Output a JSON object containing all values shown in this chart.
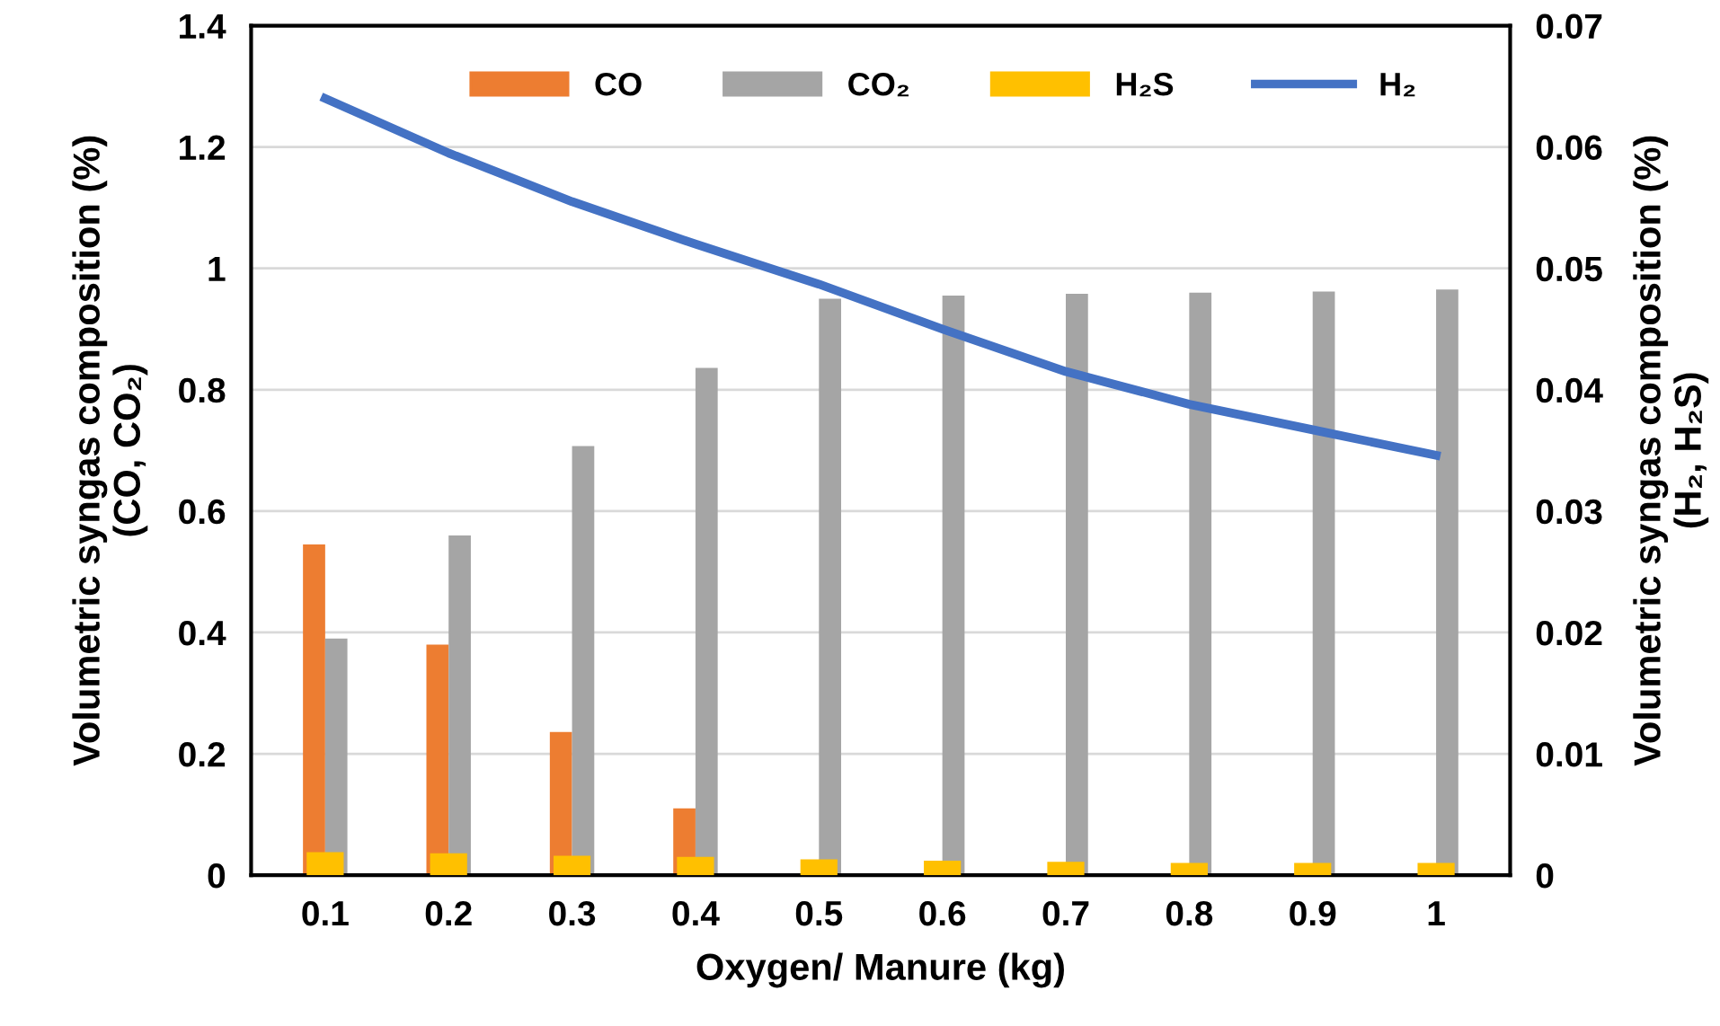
{
  "chart_data": {
    "type": "bar",
    "xlabel": "Oxygen/ Manure (kg)",
    "ylabel": "Volumetric syngas composition (%)\n(CO, CO₂)",
    "y2label": "Volumetric syngas composition (%)\n(H₂, H₂S)",
    "categories": [
      "0.1",
      "0.2",
      "0.3",
      "0.4",
      "0.5",
      "0.6",
      "0.7",
      "0.8",
      "0.9",
      "1"
    ],
    "series": [
      {
        "name": "CO",
        "color": "#ed7d31",
        "values": [
          0.545,
          0.38,
          0.236,
          0.11,
          0,
          0,
          0,
          0,
          0,
          0
        ]
      },
      {
        "name": "CO₂",
        "color": "#a5a5a5",
        "values": [
          0.39,
          0.56,
          0.707,
          0.836,
          0.95,
          0.955,
          0.958,
          0.96,
          0.962,
          0.965
        ]
      },
      {
        "name": "H₂S",
        "color": "#ffc000",
        "axis": "y2",
        "values": [
          0.0019,
          0.0018,
          0.0016,
          0.0015,
          0.0013,
          0.0012,
          0.0011,
          0.001,
          0.001,
          0.001
        ]
      },
      {
        "name": "H₂",
        "color": "#4472c4",
        "type": "line",
        "axis": "y2",
        "values": [
          0.064,
          0.0595,
          0.0555,
          0.052,
          0.0487,
          0.045,
          0.0415,
          0.0388,
          0.0367,
          0.0346
        ]
      }
    ],
    "ylim": [
      0,
      1.4
    ],
    "yticks": [
      0,
      0.2,
      0.4,
      0.6,
      0.8,
      1,
      1.2,
      1.4
    ],
    "y2lim": [
      0,
      0.07
    ],
    "y2ticks": [
      0,
      0.01,
      0.02,
      0.03,
      0.04,
      0.05,
      0.06,
      0.07
    ],
    "grid": "y",
    "legend": "top",
    "marker": "none",
    "line_style": "solid"
  }
}
